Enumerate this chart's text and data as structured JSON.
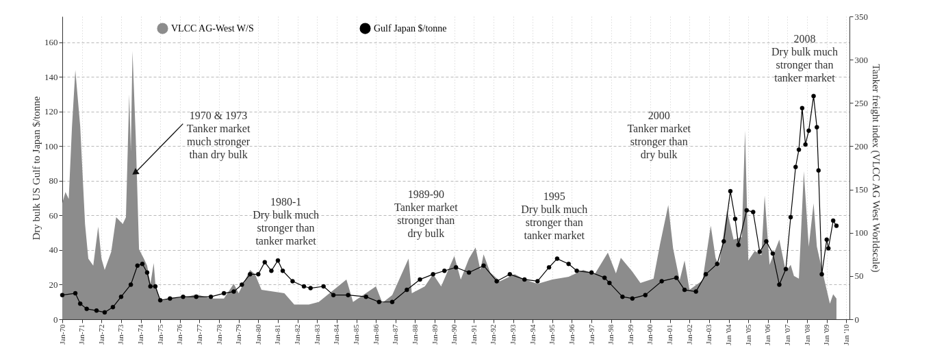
{
  "chart_data": {
    "type": "line",
    "ylabel": "Dry bulk US Gulf to Japan $/tonne",
    "y2label": "Tanker freight index (VLCC AG West Worldscale)",
    "xlim": [
      "1970-01",
      "2010-03"
    ],
    "xticks": [
      {
        "value": "1970-01",
        "label": "Jan-70"
      },
      {
        "value": "1971-01",
        "label": "Jan-71"
      },
      {
        "value": "1972-01",
        "label": "Jan-72"
      },
      {
        "value": "1973-01",
        "label": "Jan-73"
      },
      {
        "value": "1974-01",
        "label": "Jan-74"
      },
      {
        "value": "1975-01",
        "label": "Jan-75"
      },
      {
        "value": "1976-01",
        "label": "Jan-76"
      },
      {
        "value": "1977-01",
        "label": "Jan-77"
      },
      {
        "value": "1978-01",
        "label": "Jan-78"
      },
      {
        "value": "1979-01",
        "label": "Jan-79"
      },
      {
        "value": "1980-01",
        "label": "Jan-80"
      },
      {
        "value": "1981-01",
        "label": "Jan-81"
      },
      {
        "value": "1982-01",
        "label": "Jan-82"
      },
      {
        "value": "1983-01",
        "label": "Jan-83"
      },
      {
        "value": "1984-01",
        "label": "Jan-84"
      },
      {
        "value": "1985-01",
        "label": "Jan-85"
      },
      {
        "value": "1986-01",
        "label": "Jan-86"
      },
      {
        "value": "1987-01",
        "label": "Jan-87"
      },
      {
        "value": "1988-01",
        "label": "Jan-88"
      },
      {
        "value": "1989-01",
        "label": "Jan-89"
      },
      {
        "value": "1990-01",
        "label": "Jan-90"
      },
      {
        "value": "1991-01",
        "label": "Jan-91"
      },
      {
        "value": "1992-01",
        "label": "Jan-92"
      },
      {
        "value": "1993-01",
        "label": "Jan-93"
      },
      {
        "value": "1994-01",
        "label": "Jan-94"
      },
      {
        "value": "1995-01",
        "label": "Jan-95"
      },
      {
        "value": "1996-01",
        "label": "Jan-96"
      },
      {
        "value": "1997-01",
        "label": "Jan-97"
      },
      {
        "value": "1998-01",
        "label": "Jan-98"
      },
      {
        "value": "1999-01",
        "label": "Jan-99"
      },
      {
        "value": "2000-01",
        "label": "Jan-00"
      },
      {
        "value": "2001-01",
        "label": "Jan-01"
      },
      {
        "value": "2002-01",
        "label": "Jan-02"
      },
      {
        "value": "2003-01",
        "label": "Jan-03"
      },
      {
        "value": "2004-01",
        "label": "Jan '04"
      },
      {
        "value": "2005-01",
        "label": "Jan '05"
      },
      {
        "value": "2006-01",
        "label": "Jan '06"
      },
      {
        "value": "2007-01",
        "label": "Jan '07"
      },
      {
        "value": "2008-01",
        "label": "Jan '08"
      },
      {
        "value": "2009-01",
        "label": "Jan '09"
      },
      {
        "value": "2010-01",
        "label": "Jan '10"
      }
    ],
    "ylim": [
      0,
      175
    ],
    "yticks": [
      0,
      20,
      40,
      60,
      80,
      100,
      120,
      140,
      160
    ],
    "y2lim": [
      0,
      350
    ],
    "y2ticks": [
      0,
      50,
      100,
      150,
      200,
      250,
      300,
      350
    ],
    "grid": true,
    "legend": "top",
    "line_style": "solid",
    "series": [
      {
        "name": "VLCC AG-West W/S",
        "type": "area",
        "axis": "y2",
        "color": "#8c8c8c",
        "x": [
          "1970-01",
          "1970-03",
          "1970-05",
          "1970-07",
          "1970-09",
          "1970-12",
          "1971-03",
          "1971-05",
          "1971-08",
          "1971-11",
          "1972-01",
          "1972-03",
          "1972-07",
          "1972-10",
          "1973-02",
          "1973-04",
          "1973-06",
          "1973-07",
          "1973-08",
          "1973-10",
          "1973-12",
          "1974-03",
          "1974-05",
          "1974-07",
          "1974-09",
          "1974-10",
          "1975-01",
          "1975-08",
          "1976-04",
          "1976-11",
          "1977-08",
          "1978-04",
          "1978-10",
          "1979-01",
          "1979-08",
          "1979-11",
          "1980-03",
          "1980-10",
          "1981-05",
          "1981-11",
          "1982-08",
          "1983-02",
          "1984-07",
          "1984-11",
          "1986-01",
          "1986-05",
          "1986-11",
          "1987-09",
          "1987-11",
          "1988-07",
          "1988-12",
          "1989-05",
          "1990-01",
          "1990-05",
          "1990-10",
          "1991-02",
          "1991-05",
          "1991-07",
          "1991-11",
          "1992-05",
          "1993-02",
          "1993-08",
          "1994-04",
          "1995-01",
          "1995-11",
          "1996-08",
          "1997-03",
          "1997-11",
          "1998-04",
          "1998-07",
          "1999-02",
          "1999-07",
          "2000-03",
          "2000-07",
          "2000-12",
          "2001-03",
          "2001-07",
          "2001-10",
          "2002-01",
          "2002-09",
          "2003-02",
          "2003-05",
          "2003-07",
          "2003-12",
          "2004-04",
          "2004-09",
          "2004-11",
          "2005-01",
          "2005-05",
          "2005-09",
          "2005-11",
          "2006-02",
          "2006-08",
          "2006-12",
          "2007-03",
          "2007-05",
          "2007-08",
          "2007-11",
          "2008-02",
          "2008-05",
          "2008-07",
          "2008-11",
          "2009-03",
          "2009-05",
          "2009-07"
        ],
        "values": [
          134,
          147,
          139,
          223,
          288,
          223,
          110,
          70,
          62,
          107,
          70,
          57,
          78,
          118,
          110,
          118,
          260,
          194,
          310,
          210,
          81,
          70,
          62,
          41,
          65,
          41,
          21,
          25,
          25,
          29,
          24,
          24,
          41,
          30,
          57,
          52,
          34,
          32,
          30,
          17,
          17,
          20,
          46,
          20,
          38,
          19,
          28,
          70,
          30,
          38,
          52,
          38,
          73,
          46,
          70,
          83,
          57,
          75,
          54,
          44,
          52,
          46,
          41,
          46,
          49,
          57,
          52,
          77,
          53,
          71,
          55,
          42,
          47,
          87,
          132,
          82,
          45,
          68,
          34,
          45,
          108,
          71,
          61,
          126,
          92,
          95,
          218,
          68,
          79,
          74,
          143,
          63,
          92,
          55,
          63,
          50,
          47,
          171,
          84,
          134,
          84,
          50,
          18,
          29,
          24
        ]
      },
      {
        "name": "Gulf Japan $/tonne",
        "marker": "circle",
        "color": "#000000",
        "x": [
          "1970-01",
          "1970-09",
          "1970-12",
          "1971-04",
          "1971-10",
          "1972-03",
          "1972-08",
          "1973-01",
          "1973-07",
          "1973-11",
          "1974-02",
          "1974-05",
          "1974-07",
          "1974-10",
          "1975-01",
          "1975-07",
          "1976-03",
          "1976-11",
          "1977-08",
          "1978-04",
          "1978-10",
          "1979-03",
          "1979-08",
          "1980-01",
          "1980-05",
          "1980-09",
          "1981-01",
          "1981-04",
          "1981-10",
          "1982-05",
          "1982-09",
          "1983-05",
          "1983-11",
          "1984-08",
          "1985-07",
          "1986-03",
          "1986-11",
          "1987-08",
          "1988-04",
          "1988-12",
          "1989-07",
          "1990-02",
          "1990-10",
          "1991-07",
          "1992-03",
          "1992-11",
          "1993-08",
          "1994-04",
          "1994-11",
          "1995-04",
          "1995-11",
          "1996-04",
          "1997-01",
          "1997-09",
          "1997-12",
          "1998-08",
          "1999-02",
          "1999-10",
          "2000-08",
          "2001-05",
          "2001-10",
          "2002-05",
          "2002-11",
          "2003-06",
          "2003-10",
          "2004-02",
          "2004-05",
          "2004-07",
          "2004-12",
          "2005-04",
          "2005-08",
          "2005-12",
          "2006-04",
          "2006-08",
          "2006-12",
          "2007-03",
          "2007-06",
          "2007-08",
          "2007-10",
          "2007-12",
          "2008-02",
          "2008-05",
          "2008-07",
          "2008-08",
          "2008-10",
          "2009-01",
          "2009-02",
          "2009-05",
          "2009-07"
        ],
        "values": [
          14,
          15,
          9,
          6,
          5,
          4,
          7,
          13,
          20,
          31,
          32,
          27,
          19,
          19,
          11,
          12,
          13,
          13,
          13,
          15,
          16,
          20,
          26,
          26,
          33,
          28,
          34,
          28,
          22,
          19,
          18,
          19,
          14,
          14,
          13,
          10,
          10,
          17,
          23,
          26,
          28,
          30,
          27,
          31,
          22,
          26,
          23,
          22,
          30,
          35,
          32,
          28,
          27,
          24,
          21,
          13,
          12,
          14,
          22,
          24,
          17,
          16,
          26,
          32,
          45,
          74,
          58,
          43,
          63,
          62,
          39,
          45,
          38,
          20,
          29,
          59,
          88,
          98,
          122,
          101,
          109,
          129,
          111,
          86,
          26,
          46,
          41,
          57,
          54
        ]
      }
    ],
    "annotations": [
      {
        "text": "1970 & 1973\nTanker market\nmuch stronger\nthan dry bulk",
        "x": "1973-10",
        "y": 85
      },
      "1980-1\nDry bulk much\nstronger than\ntanker market",
      "1989-90\nTanker market\nstronger than\ndry bulk",
      "1995\nDry bulk much\nstronger than\ntanker market",
      "2000\nTanker market\nstronger than\ndry bulk",
      "2008\nDry bulk much\nstronger than\ntanker market"
    ]
  }
}
